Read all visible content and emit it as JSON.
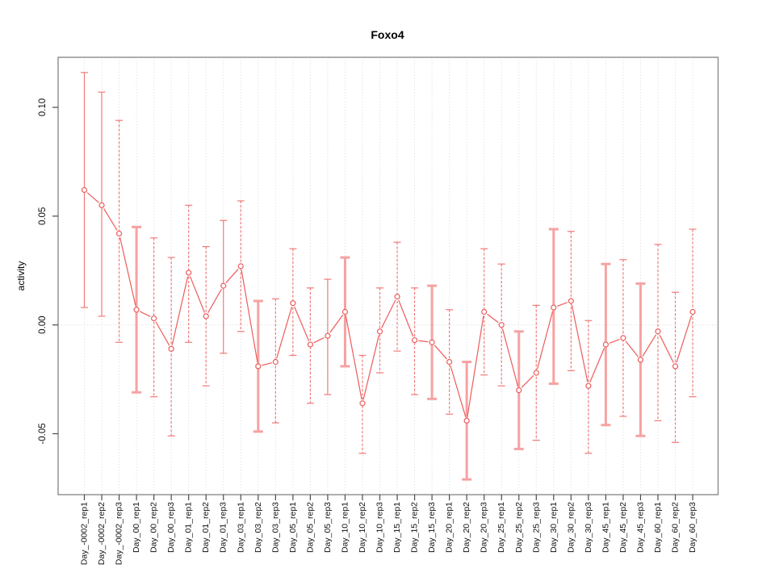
{
  "chart_data": {
    "type": "line",
    "title": "Foxo4",
    "xlabel": "",
    "ylabel": "activity",
    "legend": "none",
    "grid": {
      "vertical_dotted_per_category": true,
      "horizontal_zero_line_dotted": true
    },
    "ylim": [
      -0.078,
      0.123
    ],
    "yticks": [
      0.1,
      0.05,
      0.0,
      -0.05
    ],
    "ytick_labels": [
      "0.10",
      "0.05",
      "0.00",
      "-0.05"
    ],
    "categories": [
      "Day_-0002_rep1",
      "Day_-0002_rep2",
      "Day_-0002_rep3",
      "Day_00_rep1",
      "Day_00_rep2",
      "Day_00_rep3",
      "Day_01_rep1",
      "Day_01_rep2",
      "Day_01_rep3",
      "Day_03_rep1",
      "Day_03_rep2",
      "Day_03_rep3",
      "Day_05_rep1",
      "Day_05_rep2",
      "Day_05_rep3",
      "Day_10_rep1",
      "Day_10_rep2",
      "Day_10_rep3",
      "Day_15_rep1",
      "Day_15_rep2",
      "Day_15_rep3",
      "Day_20_rep1",
      "Day_20_rep2",
      "Day_20_rep3",
      "Day_25_rep1",
      "Day_25_rep2",
      "Day_25_rep3",
      "Day_30_rep1",
      "Day_30_rep2",
      "Day_30_rep3",
      "Day_45_rep1",
      "Day_45_rep2",
      "Day_45_rep3",
      "Day_60_rep1",
      "Day_60_rep2",
      "Day_60_rep3"
    ],
    "series": [
      {
        "name": "activity",
        "marker": "open-circle",
        "values": [
          0.062,
          0.055,
          0.042,
          0.007,
          0.003,
          -0.011,
          0.024,
          0.004,
          0.018,
          0.027,
          -0.019,
          -0.017,
          0.01,
          -0.009,
          -0.005,
          0.006,
          -0.036,
          -0.003,
          0.013,
          -0.007,
          -0.008,
          -0.017,
          -0.044,
          0.006,
          0.0,
          -0.03,
          -0.022,
          0.008,
          0.011,
          -0.028,
          -0.009,
          -0.006,
          -0.016,
          -0.003,
          -0.019,
          0.006
        ],
        "upper": [
          0.116,
          0.107,
          0.094,
          0.045,
          0.04,
          0.031,
          0.055,
          0.036,
          0.048,
          0.057,
          0.011,
          0.012,
          0.035,
          0.017,
          0.021,
          0.031,
          -0.014,
          0.017,
          0.038,
          0.017,
          0.018,
          0.007,
          -0.017,
          0.035,
          0.028,
          -0.003,
          0.009,
          0.044,
          0.043,
          0.002,
          0.028,
          0.03,
          0.019,
          0.037,
          0.015,
          0.044
        ],
        "lower": [
          0.008,
          0.004,
          -0.008,
          -0.031,
          -0.033,
          -0.051,
          -0.008,
          -0.028,
          -0.013,
          -0.003,
          -0.049,
          -0.045,
          -0.014,
          -0.036,
          -0.032,
          -0.019,
          -0.059,
          -0.022,
          -0.012,
          -0.032,
          -0.034,
          -0.041,
          -0.071,
          -0.023,
          -0.028,
          -0.057,
          -0.053,
          -0.027,
          -0.021,
          -0.059,
          -0.046,
          -0.042,
          -0.051,
          -0.044,
          -0.054,
          -0.033
        ]
      }
    ],
    "error_bar_styles": [
      "solid",
      "solid",
      "dashed",
      "thick",
      "dashed",
      "dashed",
      "dashed",
      "dashed",
      "solid",
      "dashed",
      "thick",
      "dashed",
      "dashed",
      "dashed",
      "solid",
      "thick",
      "dashed",
      "dashed",
      "dashed",
      "dashed",
      "thick",
      "dashed",
      "thick",
      "dashed",
      "dashed",
      "thick",
      "dashed",
      "thick",
      "dashed",
      "dashed",
      "thick",
      "dashed",
      "thick",
      "dashed",
      "dashed",
      "dashed"
    ],
    "colors": {
      "series_line": "#ee5b5b",
      "marker_stroke": "#ee5b5b",
      "marker_fill": "#ffffff",
      "error_bar": "#f27979",
      "error_bar_thick": "#f6a2a2",
      "grid": "#d8d8d8",
      "frame": "#8c8c8c",
      "tick": "#4a4a4a",
      "text": "#111111"
    }
  }
}
